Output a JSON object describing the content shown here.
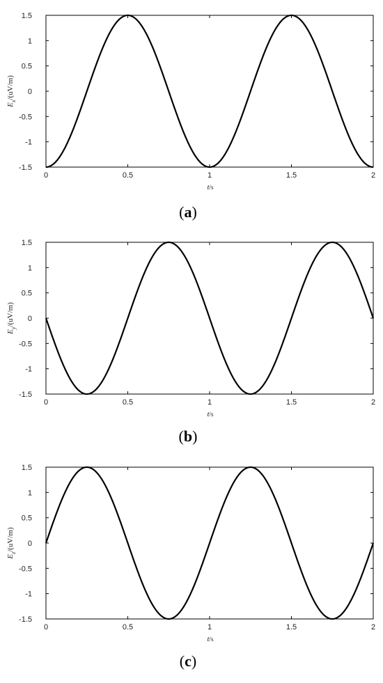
{
  "chart_data": [
    {
      "type": "line",
      "panel_label": "(a)",
      "panel_letter": "a",
      "xlabel": "t/s",
      "xlabel_var": "t",
      "xlabel_unit": "/s",
      "ylabel_var": "E",
      "ylabel_sub": "x",
      "ylabel_unit": "/(uV/m)",
      "xlim": [
        0,
        2
      ],
      "ylim": [
        -1.5,
        1.5
      ],
      "xticks": [
        "0",
        "0.5",
        "1",
        "1.5",
        "2"
      ],
      "yticks": [
        "-1.5",
        "-1",
        "-0.5",
        "0",
        "0.5",
        "1",
        "1.5"
      ],
      "function": "-1.5*cos(2*pi*t)",
      "x": [
        0,
        0.125,
        0.25,
        0.375,
        0.5,
        0.625,
        0.75,
        0.875,
        1,
        1.125,
        1.25,
        1.375,
        1.5,
        1.625,
        1.75,
        1.875,
        2
      ],
      "y": [
        -1.5,
        -1.06,
        0,
        1.06,
        1.5,
        1.06,
        0,
        -1.06,
        -1.5,
        -1.06,
        0,
        1.06,
        1.5,
        1.06,
        0,
        -1.06,
        -1.5
      ]
    },
    {
      "type": "line",
      "panel_label": "(b)",
      "panel_letter": "b",
      "xlabel": "t/s",
      "xlabel_var": "t",
      "xlabel_unit": "/s",
      "ylabel_var": "E",
      "ylabel_sub": "y",
      "ylabel_unit": "/(uV/m)",
      "xlim": [
        0,
        2
      ],
      "ylim": [
        -1.5,
        1.5
      ],
      "xticks": [
        "0",
        "0.5",
        "1",
        "1.5",
        "2"
      ],
      "yticks": [
        "-1.5",
        "-1",
        "-0.5",
        "0",
        "0.5",
        "1",
        "1.5"
      ],
      "function": "-1.5*sin(2*pi*t)",
      "x": [
        0,
        0.125,
        0.25,
        0.375,
        0.5,
        0.625,
        0.75,
        0.875,
        1,
        1.125,
        1.25,
        1.375,
        1.5,
        1.625,
        1.75,
        1.875,
        2
      ],
      "y": [
        0,
        -1.06,
        -1.5,
        -1.06,
        0,
        1.06,
        1.5,
        1.06,
        0,
        -1.06,
        -1.5,
        -1.06,
        0,
        1.06,
        1.5,
        1.06,
        0
      ]
    },
    {
      "type": "line",
      "panel_label": "(c)",
      "panel_letter": "c",
      "xlabel": "t/s",
      "xlabel_var": "t",
      "xlabel_unit": "/s",
      "ylabel_var": "E",
      "ylabel_sub": "z",
      "ylabel_unit": "/(uV/m)",
      "xlim": [
        0,
        2
      ],
      "ylim": [
        -1.5,
        1.5
      ],
      "xticks": [
        "0",
        "0.5",
        "1",
        "1.5",
        "2"
      ],
      "yticks": [
        "-1.5",
        "-1",
        "-0.5",
        "0",
        "0.5",
        "1",
        "1.5"
      ],
      "function": "1.5*sin(2*pi*t)",
      "x": [
        0,
        0.125,
        0.25,
        0.375,
        0.5,
        0.625,
        0.75,
        0.875,
        1,
        1.125,
        1.25,
        1.375,
        1.5,
        1.625,
        1.75,
        1.875,
        2
      ],
      "y": [
        0,
        1.06,
        1.5,
        1.06,
        0,
        -1.06,
        -1.5,
        -1.06,
        0,
        1.06,
        1.5,
        1.06,
        0,
        -1.06,
        -1.5,
        -1.06,
        0
      ]
    }
  ]
}
